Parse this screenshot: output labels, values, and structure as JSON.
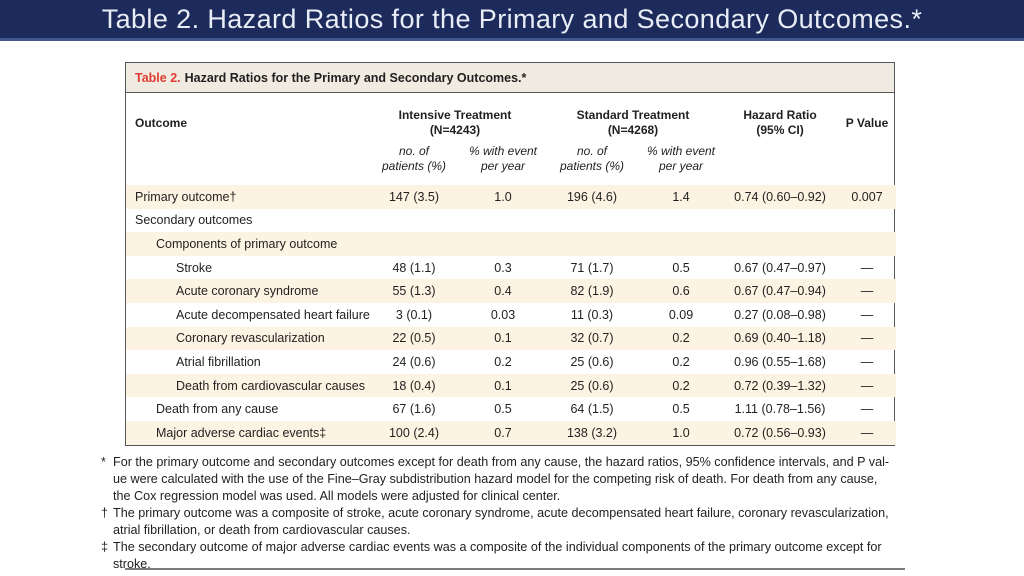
{
  "banner": {
    "title": "Table 2. Hazard Ratios for the Primary and Secondary Outcomes.*"
  },
  "table": {
    "caption_label": "Table 2.",
    "caption_text": "Hazard Ratios for the Primary and Secondary Outcomes.*",
    "columns": {
      "outcome": "Outcome",
      "intensive_group": "Intensive Treatment\n(N=4243)",
      "standard_group": "Standard Treatment\n(N=4268)",
      "hazard_ratio": "Hazard Ratio\n(95% CI)",
      "p_value": "P Value",
      "sub_no_patients": "no. of\npatients (%)",
      "sub_pct_event": "% with event\nper year"
    },
    "rows": [
      {
        "label": "Primary outcome†",
        "int_np": "147 (3.5)",
        "int_ev": "1.0",
        "std_np": "196 (4.6)",
        "std_ev": "1.4",
        "hr": "0.74 (0.60–0.92)",
        "p": "0.007"
      },
      {
        "label": "Secondary outcomes",
        "int_np": "",
        "int_ev": "",
        "std_np": "",
        "std_ev": "",
        "hr": "",
        "p": ""
      },
      {
        "label": "Components of primary outcome",
        "int_np": "",
        "int_ev": "",
        "std_np": "",
        "std_ev": "",
        "hr": "",
        "p": ""
      },
      {
        "label": "Stroke",
        "int_np": "48 (1.1)",
        "int_ev": "0.3",
        "std_np": "71 (1.7)",
        "std_ev": "0.5",
        "hr": "0.67 (0.47–0.97)",
        "p": "—"
      },
      {
        "label": "Acute coronary syndrome",
        "int_np": "55 (1.3)",
        "int_ev": "0.4",
        "std_np": "82 (1.9)",
        "std_ev": "0.6",
        "hr": "0.67 (0.47–0.94)",
        "p": "—"
      },
      {
        "label": "Acute decompensated heart failure",
        "int_np": "3 (0.1)",
        "int_ev": "0.03",
        "std_np": "11 (0.3)",
        "std_ev": "0.09",
        "hr": "0.27 (0.08–0.98)",
        "p": "—"
      },
      {
        "label": "Coronary revascularization",
        "int_np": "22 (0.5)",
        "int_ev": "0.1",
        "std_np": "32 (0.7)",
        "std_ev": "0.2",
        "hr": "0.69 (0.40–1.18)",
        "p": "—"
      },
      {
        "label": "Atrial fibrillation",
        "int_np": "24 (0.6)",
        "int_ev": "0.2",
        "std_np": "25 (0.6)",
        "std_ev": "0.2",
        "hr": "0.96 (0.55–1.68)",
        "p": "—"
      },
      {
        "label": "Death from cardiovascular causes",
        "int_np": "18 (0.4)",
        "int_ev": "0.1",
        "std_np": "25 (0.6)",
        "std_ev": "0.2",
        "hr": "0.72 (0.39–1.32)",
        "p": "—"
      },
      {
        "label": "Death from any cause",
        "int_np": "67 (1.6)",
        "int_ev": "0.5",
        "std_np": "64 (1.5)",
        "std_ev": "0.5",
        "hr": "1.11 (0.78–1.56)",
        "p": "—"
      },
      {
        "label": "Major adverse cardiac events‡",
        "int_np": "100 (2.4)",
        "int_ev": "0.7",
        "std_np": "138 (3.2)",
        "std_ev": "1.0",
        "hr": "0.72 (0.56–0.93)",
        "p": "—"
      }
    ]
  },
  "footnotes": [
    {
      "marker": "*",
      "text": "For the primary outcome and secondary outcomes except for death from any cause, the hazard ratios, 95% confidence intervals, and P val-\nue were calculated with the use of the Fine–Gray subdistribution hazard model for the competing risk of death. For death from any cause,\nthe Cox regression model was used. All models were adjusted for clinical center."
    },
    {
      "marker": "†",
      "text": "The primary outcome was a composite of stroke, acute coronary syndrome, acute decompensated heart failure, coronary revascularization,\natrial fibrillation, or death from cardiovascular causes."
    },
    {
      "marker": "‡",
      "text": "The secondary outcome of major adverse cardiac events was a composite of the individual components of the primary outcome except for\nstroke."
    }
  ],
  "colors": {
    "banner_navy": "#1c2b5c",
    "banner_underline": "#41588d",
    "caption_red": "#e03b33",
    "caption_beige": "#f0ebe0",
    "row_cream": "#fcf3e2",
    "border_gray": "#55565a"
  }
}
